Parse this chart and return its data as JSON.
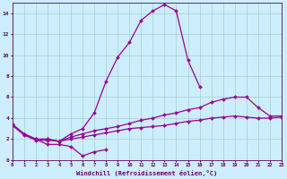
{
  "x_full": [
    0,
    1,
    2,
    3,
    4,
    5,
    6,
    7,
    8,
    9,
    10,
    11,
    12,
    13,
    14,
    15,
    16,
    17,
    18,
    19,
    20,
    21,
    22,
    23
  ],
  "line_zigzag": [
    3.4,
    2.5,
    2.0,
    1.5,
    1.5,
    1.3,
    0.4,
    0.8,
    1.0,
    null,
    null,
    null,
    null,
    null,
    null,
    null,
    null,
    null,
    null,
    null,
    null,
    null,
    null,
    null
  ],
  "line_peak": [
    3.4,
    2.5,
    2.0,
    2.0,
    1.8,
    2.5,
    3.0,
    4.5,
    7.5,
    9.8,
    11.2,
    13.3,
    14.2,
    14.8,
    14.2,
    9.5,
    7.0,
    null,
    null,
    null,
    null,
    null,
    null,
    null
  ],
  "line_upper": [
    3.4,
    2.5,
    2.0,
    2.0,
    1.8,
    2.2,
    2.5,
    2.8,
    3.0,
    3.2,
    3.5,
    3.8,
    4.0,
    4.3,
    4.5,
    4.8,
    5.0,
    5.5,
    5.8,
    6.0,
    6.0,
    5.0,
    4.2,
    4.2
  ],
  "line_lower": [
    3.3,
    2.4,
    1.9,
    1.9,
    1.8,
    2.0,
    2.2,
    2.4,
    2.6,
    2.8,
    3.0,
    3.1,
    3.2,
    3.3,
    3.5,
    3.7,
    3.8,
    4.0,
    4.1,
    4.2,
    4.1,
    4.0,
    4.0,
    4.1
  ],
  "line_color": "#990099",
  "bg_color": "#cceeff",
  "grid_color": "#aacccc",
  "axis_color": "#660066",
  "xlabel": "Windchill (Refroidissement éolien,°C)",
  "xlim": [
    0,
    23
  ],
  "ylim": [
    0,
    15
  ],
  "yticks": [
    0,
    2,
    4,
    6,
    8,
    10,
    12,
    14
  ],
  "marker": "D",
  "markersize": 2.0,
  "linewidth": 0.9
}
